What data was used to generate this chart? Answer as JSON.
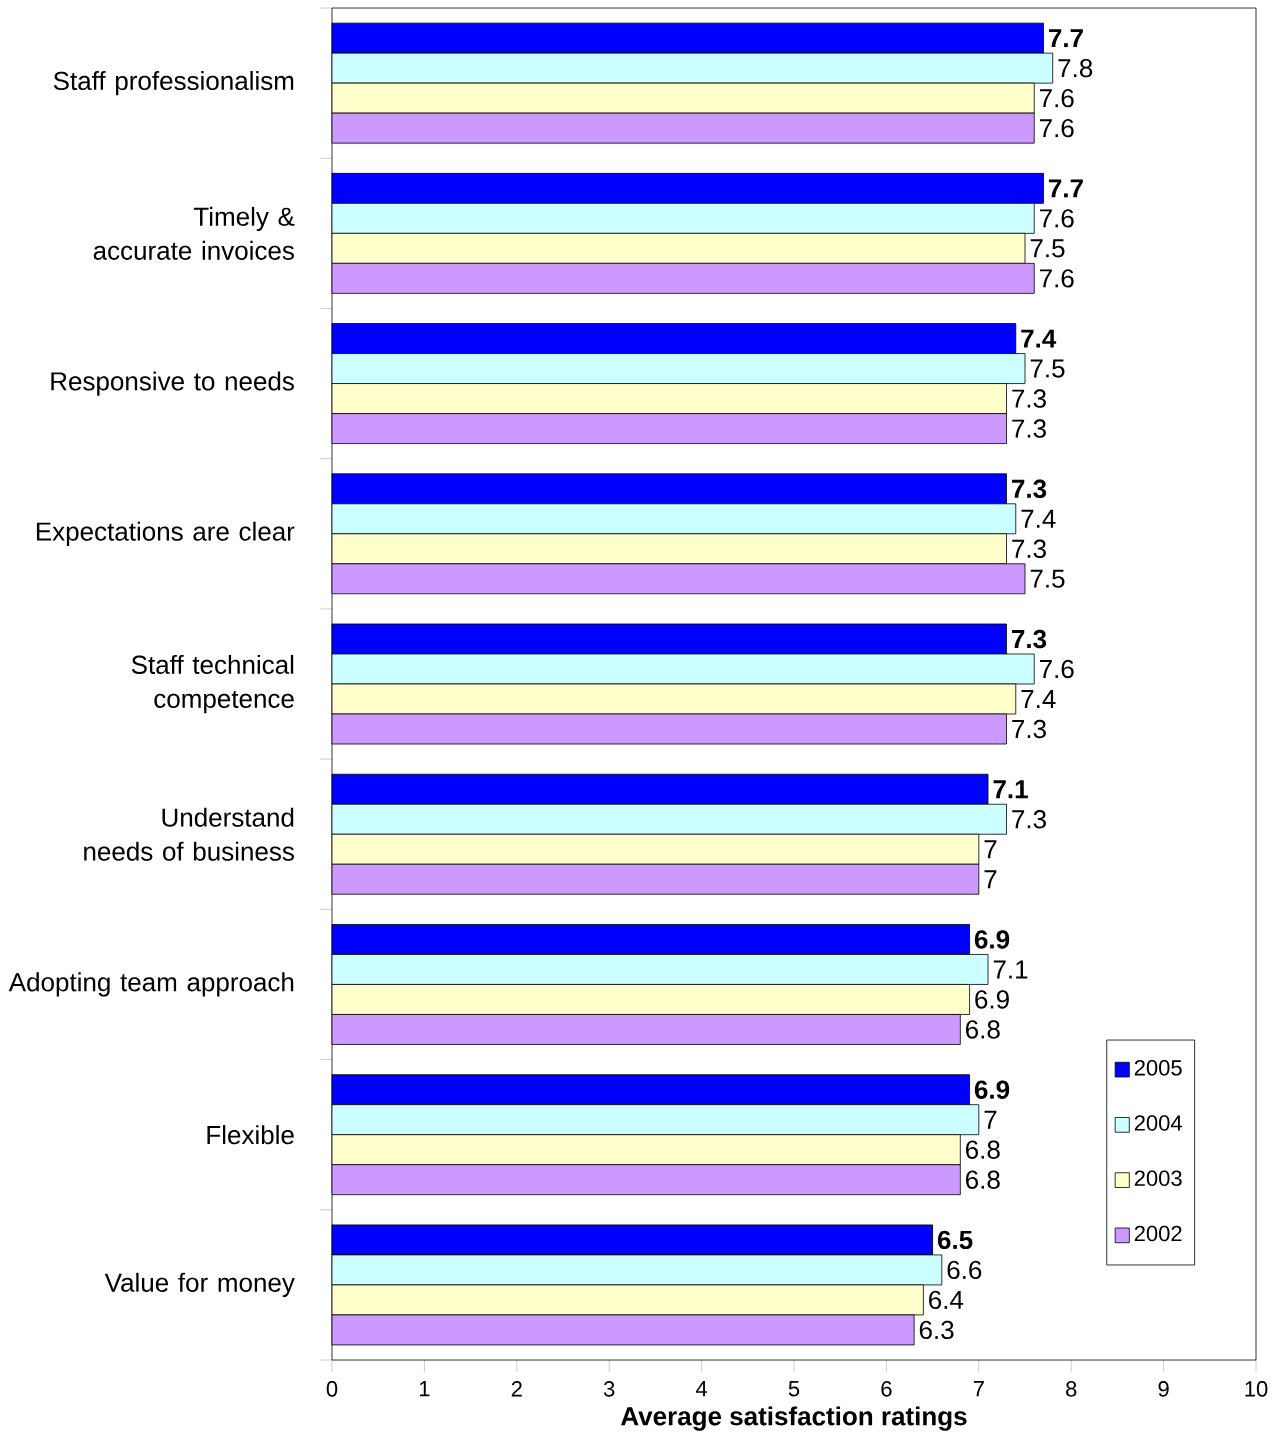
{
  "chart_data": {
    "type": "bar",
    "orientation": "horizontal",
    "xlabel": "Average satisfaction ratings",
    "categories": [
      "Staff professionalism",
      "Timely & accurate invoices",
      "Responsive to needs",
      "Expectations are clear",
      "Staff technical competence",
      "Understand needs of business",
      "Adopting team approach",
      "Flexible",
      "Value for money"
    ],
    "series": [
      {
        "name": "2005",
        "color": "#0000ff",
        "values": [
          7.7,
          7.7,
          7.4,
          7.3,
          7.3,
          7.1,
          6.9,
          6.9,
          6.5
        ]
      },
      {
        "name": "2004",
        "color": "#ccffff",
        "values": [
          7.8,
          7.6,
          7.5,
          7.4,
          7.6,
          7.3,
          7.1,
          7,
          6.6
        ]
      },
      {
        "name": "2003",
        "color": "#ffffcc",
        "values": [
          7.6,
          7.5,
          7.3,
          7.3,
          7.4,
          7,
          6.9,
          6.8,
          6.4
        ]
      },
      {
        "name": "2002",
        "color": "#cc99ff",
        "values": [
          7.6,
          7.6,
          7.3,
          7.5,
          7.3,
          7,
          6.8,
          6.8,
          6.3
        ]
      }
    ],
    "xlim": [
      0,
      10
    ],
    "xticks": [
      0,
      1,
      2,
      3,
      4,
      5,
      6,
      7,
      8,
      9,
      10
    ],
    "data_labels": true,
    "legend": "bottom right",
    "grid": false
  }
}
